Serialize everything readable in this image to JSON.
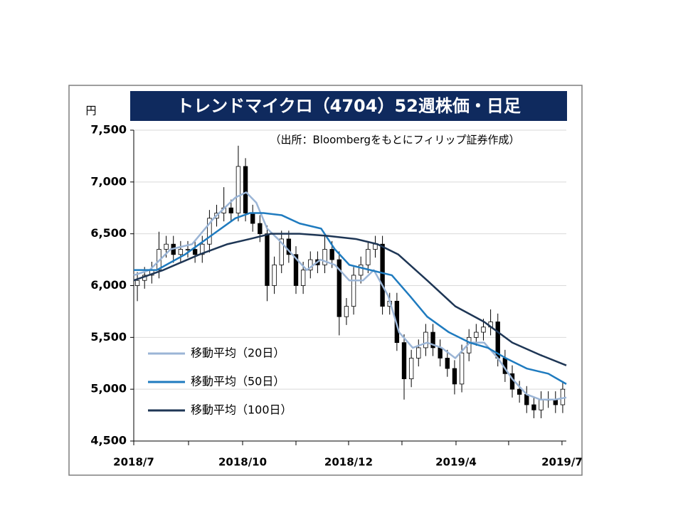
{
  "chart_data": {
    "type": "candlestick",
    "title": "トレンドマイクロ（4704）52週株価・日足",
    "annotation": "（出所：Bloombergをもとにフィリップ証券作成）",
    "y_label": "円",
    "xlim": [
      0,
      60
    ],
    "xticks": [
      {
        "value": 0,
        "label": "2018/7"
      },
      {
        "value": 7.6,
        "label": null
      },
      {
        "value": 15.1,
        "label": "2018/10"
      },
      {
        "value": 22.5,
        "label": null
      },
      {
        "value": 29.8,
        "label": "2018/12"
      },
      {
        "value": 37.2,
        "label": null
      },
      {
        "value": 44.7,
        "label": "2019/4"
      },
      {
        "value": 52.0,
        "label": null
      },
      {
        "value": 59.4,
        "label": "2019/7"
      }
    ],
    "ylim": [
      4500,
      7500
    ],
    "yticks": [
      {
        "value": 4500,
        "label": "4,500"
      },
      {
        "value": 5000,
        "label": "5,000"
      },
      {
        "value": 5500,
        "label": "5,500"
      },
      {
        "value": 6000,
        "label": "6,000"
      },
      {
        "value": 6500,
        "label": "6,500"
      },
      {
        "value": 7000,
        "label": "7,000"
      },
      {
        "value": 7500,
        "label": "7,500"
      }
    ],
    "grid": true,
    "legend": "lower-left",
    "candles": {
      "up_color": "#ffffff",
      "down_color": "#000000",
      "x": [
        0.5,
        1.5,
        2.5,
        3.5,
        4.5,
        5.5,
        6.5,
        7.5,
        8.5,
        9.5,
        10.5,
        11.5,
        12.5,
        13.5,
        14.5,
        15.5,
        16.5,
        17.5,
        18.5,
        19.5,
        20.5,
        21.5,
        22.5,
        23.5,
        24.5,
        25.5,
        26.5,
        27.5,
        28.5,
        29.5,
        30.5,
        31.5,
        32.5,
        33.5,
        34.5,
        35.5,
        36.5,
        37.5,
        38.5,
        39.5,
        40.5,
        41.5,
        42.5,
        43.5,
        44.5,
        45.5,
        46.5,
        47.5,
        48.5,
        49.5,
        50.5,
        51.5,
        52.5,
        53.5,
        54.5,
        55.5,
        56.5,
        57.5,
        58.5,
        59.5
      ],
      "open": [
        6000,
        6050,
        6100,
        6150,
        6350,
        6400,
        6300,
        6350,
        6350,
        6300,
        6400,
        6650,
        6700,
        6750,
        6700,
        7150,
        6700,
        6600,
        6500,
        6000,
        6200,
        6450,
        6300,
        6000,
        6150,
        6250,
        6200,
        6350,
        6250,
        5700,
        5800,
        6100,
        6200,
        6350,
        6400,
        5800,
        5850,
        5450,
        5100,
        5300,
        5400,
        5550,
        5400,
        5300,
        5200,
        5050,
        5350,
        5500,
        5550,
        5600,
        5650,
        5300,
        5150,
        5000,
        4950,
        4850,
        4800,
        4900,
        4900,
        4850
      ],
      "high": [
        6130,
        6180,
        6230,
        6520,
        6480,
        6480,
        6430,
        6430,
        6430,
        6480,
        6730,
        6780,
        6950,
        6830,
        7350,
        7230,
        6780,
        6680,
        6580,
        6280,
        6530,
        6530,
        6380,
        6230,
        6330,
        6330,
        6500,
        6430,
        6330,
        5880,
        6180,
        6280,
        6430,
        6480,
        6480,
        5930,
        5930,
        5530,
        5380,
        5480,
        5630,
        5630,
        5480,
        5380,
        5280,
        5430,
        5580,
        5630,
        5680,
        5770,
        5730,
        5380,
        5230,
        5080,
        5030,
        4930,
        4980,
        4980,
        4980,
        5080
      ],
      "low": [
        5850,
        5970,
        6020,
        6070,
        6270,
        6220,
        6220,
        6270,
        6220,
        6220,
        6320,
        6570,
        6620,
        6620,
        6620,
        6620,
        6520,
        6420,
        5850,
        5920,
        6120,
        6220,
        5920,
        5920,
        6070,
        6120,
        6120,
        6170,
        5520,
        5620,
        5720,
        6020,
        6120,
        6270,
        5720,
        5720,
        5370,
        4900,
        5020,
        5220,
        5320,
        5320,
        5220,
        5120,
        4950,
        4970,
        5270,
        5420,
        5470,
        5520,
        5220,
        5070,
        4920,
        4870,
        4770,
        4720,
        4720,
        4820,
        4770,
        4770
      ],
      "close": [
        6050,
        6100,
        6150,
        6350,
        6400,
        6300,
        6350,
        6350,
        6300,
        6400,
        6650,
        6700,
        6750,
        6700,
        7150,
        6700,
        6600,
        6500,
        6000,
        6200,
        6450,
        6300,
        6000,
        6150,
        6250,
        6200,
        6350,
        6250,
        5700,
        5800,
        6100,
        6200,
        6350,
        6400,
        5800,
        5850,
        5450,
        5100,
        5300,
        5400,
        5550,
        5400,
        5300,
        5200,
        5050,
        5350,
        5500,
        5550,
        5600,
        5650,
        5300,
        5150,
        5000,
        4950,
        4850,
        4800,
        4900,
        4900,
        4850,
        5000
      ]
    },
    "series": [
      {
        "name": "移動平均（20日）",
        "color": "#9bb5d6",
        "x": [
          0,
          2.2,
          5.1,
          8.1,
          11.1,
          14.1,
          15.6,
          17.0,
          18.5,
          20.0,
          22.0,
          24.0,
          25.9,
          27.9,
          29.9,
          31.8,
          33.3,
          35.3,
          36.8,
          38.7,
          40.7,
          42.7,
          44.6,
          46.6,
          48.6,
          50.5,
          52.5,
          54.5,
          56.4,
          58.4,
          60
        ],
        "values": [
          6100,
          6150,
          6350,
          6400,
          6650,
          6850,
          6900,
          6800,
          6550,
          6450,
          6300,
          6150,
          6250,
          6200,
          6050,
          6050,
          6150,
          5900,
          5550,
          5400,
          5450,
          5400,
          5300,
          5450,
          5450,
          5300,
          5100,
          4950,
          4900,
          4900,
          4920
        ]
      },
      {
        "name": "移動平均（50日）",
        "color": "#1f7bbf",
        "x": [
          0,
          3.2,
          7.1,
          11.1,
          14.1,
          16.1,
          18.0,
          20.5,
          23.0,
          26.0,
          27.9,
          29.9,
          32.8,
          35.8,
          38.3,
          40.7,
          43.7,
          46.6,
          49.1,
          51.6,
          54.5,
          57.5,
          60
        ],
        "values": [
          6150,
          6150,
          6300,
          6500,
          6650,
          6700,
          6700,
          6680,
          6600,
          6550,
          6350,
          6200,
          6150,
          6100,
          5900,
          5700,
          5550,
          5450,
          5400,
          5300,
          5200,
          5150,
          5050
        ]
      },
      {
        "name": "移動平均（100日）",
        "color": "#1e3655",
        "x": [
          0,
          4.1,
          9.1,
          13.0,
          16.1,
          19.0,
          23.0,
          26.9,
          30.8,
          33.8,
          36.7,
          40.7,
          44.6,
          48.6,
          52.5,
          56.4,
          60
        ],
        "values": [
          6050,
          6150,
          6300,
          6400,
          6450,
          6500,
          6500,
          6480,
          6450,
          6400,
          6300,
          6050,
          5800,
          5650,
          5450,
          5330,
          5230
        ]
      }
    ]
  }
}
